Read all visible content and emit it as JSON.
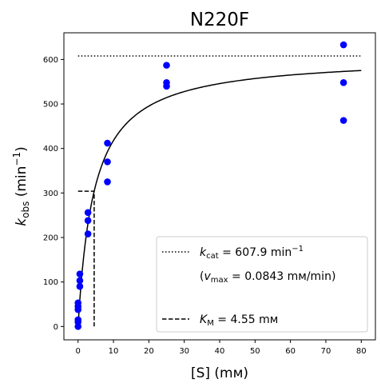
{
  "chart_data": {
    "type": "scatter",
    "title": "N220F",
    "xlabel": "[S] (mм)",
    "ylabel": "k_obs (min^-1)",
    "ylabel_parts": {
      "base": "k",
      "sub": "obs",
      "unit": " (min",
      "sup": "−1",
      "close": ")"
    },
    "xlim": [
      -4,
      84
    ],
    "ylim": [
      -30,
      660
    ],
    "x_ticks": [
      0,
      10,
      20,
      30,
      40,
      50,
      60,
      70,
      80
    ],
    "y_ticks": [
      0,
      100,
      200,
      300,
      400,
      500,
      600
    ],
    "grid": false,
    "legend_position": "lower-right",
    "series": [
      {
        "type": "scatter",
        "color": "#0000ff",
        "points": [
          [
            0,
            0
          ],
          [
            0,
            10
          ],
          [
            0,
            15
          ],
          [
            0,
            38
          ],
          [
            0,
            45
          ],
          [
            0,
            53
          ],
          [
            0.5,
            90
          ],
          [
            0.5,
            103
          ],
          [
            0.5,
            118
          ],
          [
            2.8,
            208
          ],
          [
            2.8,
            238
          ],
          [
            2.8,
            256
          ],
          [
            8.3,
            325
          ],
          [
            8.3,
            370
          ],
          [
            8.3,
            412
          ],
          [
            25,
            540
          ],
          [
            25,
            548
          ],
          [
            25,
            587
          ],
          [
            75,
            463
          ],
          [
            75,
            548
          ],
          [
            75,
            633
          ]
        ]
      },
      {
        "type": "line",
        "style": "solid",
        "color": "#000000",
        "model": "michaelis-menten",
        "kcat": 607.9,
        "km": 4.55,
        "x_range": [
          0,
          80
        ]
      },
      {
        "type": "line",
        "style": "dotted",
        "color": "#000000",
        "points": [
          [
            0,
            607.9
          ],
          [
            80,
            607.9
          ]
        ]
      },
      {
        "type": "line",
        "style": "dashed",
        "color": "#000000",
        "points": [
          [
            0,
            303.95
          ],
          [
            4.55,
            303.95
          ],
          [
            4.55,
            0
          ]
        ]
      }
    ],
    "legend": [
      {
        "style": "dotted",
        "label_parts": {
          "base": "k",
          "sub": "cat",
          "text": " = 607.9 min",
          "sup": "−1"
        }
      },
      {
        "style": "none",
        "label_parts": {
          "pre": "(",
          "base": "v",
          "sub": "max",
          "text": " = 0.0843 mм/min)"
        }
      },
      {
        "style": "dashed",
        "label_parts": {
          "base": "K",
          "sub": "M",
          "text": " = 4.55 mм"
        }
      }
    ]
  }
}
